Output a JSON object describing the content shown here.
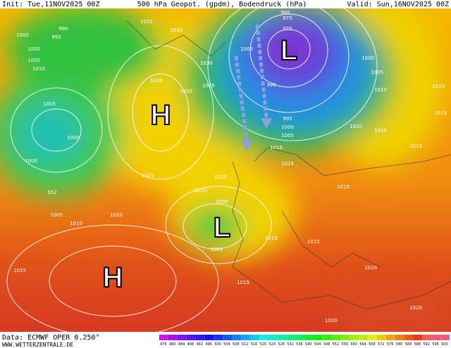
{
  "header": {
    "init": "Init: Tue,11NOV2025 00Z",
    "title": "500 hPa Geopot. (gpdm), Bodendruck (hPa)",
    "valid": "Valid: Sun,16NOV2025 00Z"
  },
  "pressure_centers": [
    "L",
    "H",
    "L",
    "H"
  ],
  "isobar_labels": [
    990,
    995,
    1000,
    1000,
    1005,
    1010,
    1032,
    1035,
    1030,
    1030,
    1035,
    1025,
    980,
    975,
    970,
    1000,
    990,
    995,
    1000,
    1005,
    1010,
    1015,
    1000,
    1005,
    1010,
    1020,
    1015,
    1015,
    1015,
    1010,
    1005,
    1000,
    1000,
    1025,
    1015,
    1010,
    1005,
    1005,
    1010,
    1015,
    1015,
    1020,
    1010,
    1005,
    1015,
    1015,
    1020,
    1020,
    1020,
    552
  ],
  "colorbar": [
    476,
    480,
    484,
    488,
    492,
    496,
    500,
    504,
    508,
    512,
    516,
    520,
    524,
    528,
    532,
    536,
    540,
    544,
    548,
    552,
    556,
    560,
    564,
    568,
    572,
    576,
    580,
    584,
    588,
    592,
    596,
    600
  ],
  "footer": {
    "data": "Data: ECMWF OPER 0.250°",
    "site": "WWW.WETTERZENTRALE.DE"
  }
}
